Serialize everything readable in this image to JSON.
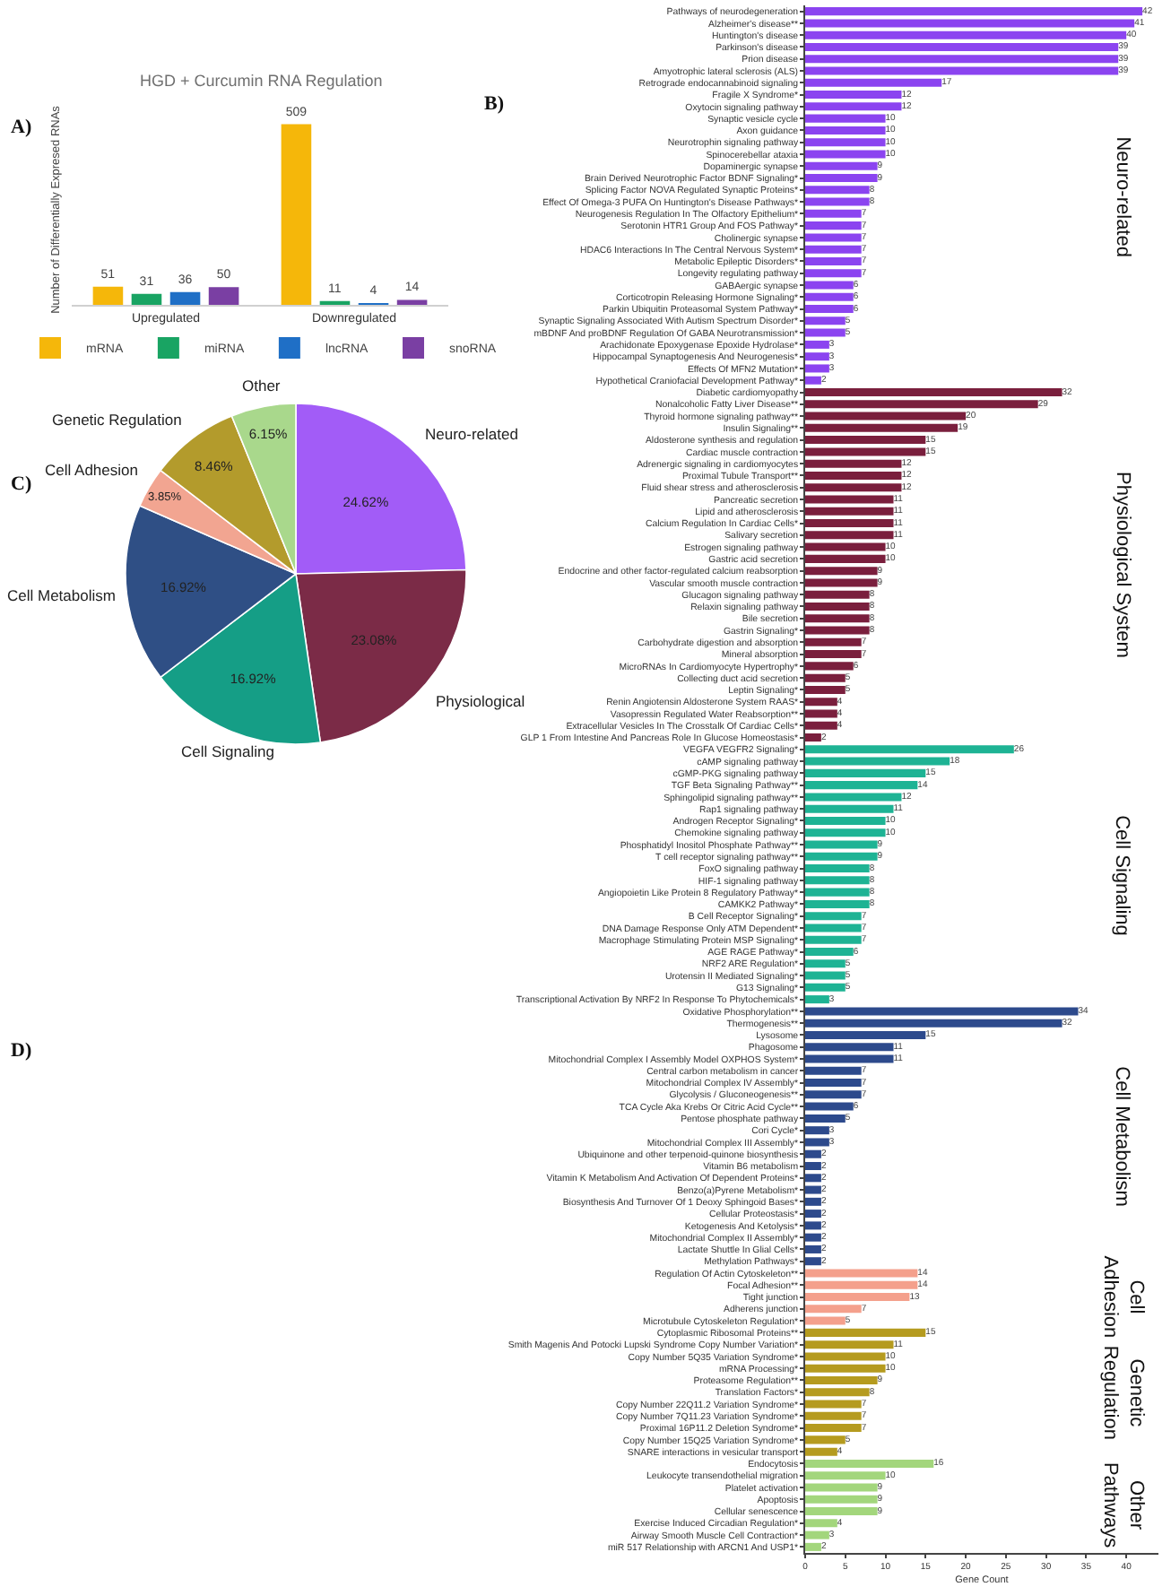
{
  "chart_data": [
    {
      "type": "bar",
      "title": "HGD + Curcumin RNA Regulation",
      "ylabel": "Number of Differentially Expresed RNAs",
      "annotations": [
        "A)"
      ],
      "categories": [
        "Upregulated",
        "Downregulated"
      ],
      "series": [
        {
          "name": "mRNA",
          "color": "#f5b70a",
          "values": [
            51,
            509
          ]
        },
        {
          "name": "miRNA",
          "color": "#19a463",
          "values": [
            31,
            11
          ]
        },
        {
          "name": "lncRNA",
          "color": "#1f6fc6",
          "values": [
            36,
            4
          ]
        },
        {
          "name": "snoRNA",
          "color": "#7a3fa3",
          "values": [
            50,
            14
          ]
        }
      ],
      "data_labels": true,
      "legend": "bottom",
      "tick_labels": "x"
    },
    {
      "type": "bar",
      "orientation": "horizontal",
      "xlabel": "Gene Count",
      "annotations": [
        "B)",
        "Neuro-related",
        "Physiological System",
        "Cell Signaling",
        "Cell Metabolism",
        "Cell\nAdhesion",
        "Genetic\nRegulation",
        "Other\nPathways"
      ],
      "categories": [
        "Pathways of neurodegeneration",
        "Alzheimer's disease**",
        "Huntington's disease",
        "Parkinson's disease",
        "Prion disease",
        "Amyotrophic lateral sclerosis (ALS)",
        "Retrograde endocannabinoid signaling",
        "Fragile X Syndrome*",
        "Oxytocin signaling pathway",
        "Synaptic vesicle cycle",
        "Axon guidance",
        "Neurotrophin signaling pathway",
        "Spinocerebellar ataxia",
        "Dopaminergic synapse",
        "Brain Derived Neurotrophic Factor BDNF Signaling*",
        "Splicing Factor NOVA Regulated Synaptic Proteins*",
        "Effect Of Omega-3 PUFA On Huntington's Disease Pathways*",
        "Neurogenesis Regulation In The Olfactory Epithelium*",
        "Serotonin HTR1 Group And FOS Pathway*",
        "Cholinergic synapse",
        "HDAC6 Interactions In The Central Nervous System*",
        "Metabolic Epileptic Disorders*",
        "Longevity regulating pathway",
        "GABAergic synapse",
        "Corticotropin Releasing Hormone Signaling*",
        "Parkin Ubiquitin Proteasomal System Pathway*",
        "Synaptic Signaling Associated With Autism Spectrum Disorder*",
        "mBDNF And proBDNF Regulation Of GABA Neurotransmission*",
        "Arachidonate Epoxygenase Epoxide Hydrolase*",
        "Hippocampal Synaptogenesis And Neurogenesis*",
        "Effects Of MFN2 Mutation*",
        "Hypothetical Craniofacial Development Pathway*",
        "Diabetic cardiomyopathy",
        "Nonalcoholic Fatty Liver Disease**",
        "Thyroid hormone signaling pathway**",
        "Insulin Signaling**",
        "Aldosterone synthesis and regulation",
        "Cardiac muscle contraction",
        "Adrenergic signaling in cardiomyocytes",
        "Proximal Tubule Transport**",
        "Fluid shear stress and atherosclerosis",
        "Pancreatic secretion",
        "Lipid and atherosclerosis",
        "Calcium Regulation In Cardiac Cells*",
        "Salivary secretion",
        "Estrogen signaling pathway",
        "Gastric acid secretion",
        "Endocrine and other factor-regulated calcium reabsorption",
        "Vascular smooth muscle contraction",
        "Glucagon signaling pathway",
        "Relaxin signaling pathway",
        "Bile secretion",
        "Gastrin Signaling*",
        "Carbohydrate digestion and absorption",
        "Mineral absorption",
        "MicroRNAs In Cardiomyocyte Hypertrophy*",
        "Collecting duct acid secretion",
        "Leptin Signaling*",
        "Renin Angiotensin Aldosterone System RAAS*",
        "Vasopressin Regulated Water Reabsorption**",
        "Extracellular Vesicles In The Crosstalk Of Cardiac Cells*",
        "GLP 1 From Intestine And Pancreas Role In Glucose Homeostasis*",
        "VEGFA VEGFR2 Signaling*",
        "cAMP signaling pathway",
        "cGMP-PKG signaling pathway",
        "TGF Beta Signaling Pathway**",
        "Sphingolipid signaling pathway**",
        "Rap1 signaling pathway",
        "Androgen Receptor Signaling*",
        "Chemokine signaling pathway",
        "Phosphatidyl Inositol Phosphate Pathway**",
        "T cell receptor signaling pathway**",
        "FoxO signaling pathway",
        "HIF-1 signaling pathway",
        "Angiopoietin Like Protein 8 Regulatory Pathway*",
        "CAMKK2 Pathway*",
        "B Cell Receptor Signaling*",
        "DNA Damage Response Only ATM Dependent*",
        "Macrophage Stimulating Protein MSP Signaling*",
        "AGE RAGE Pathway*",
        "NRF2 ARE Regulation*",
        "Urotensin II Mediated Signaling*",
        "G13 Signaling*",
        "Transcriptional Activation By NRF2 In Response To Phytochemicals*",
        "Oxidative Phosphorylation**",
        "Thermogenesis**",
        "Lysosome",
        "Phagosome",
        "Mitochondrial Complex I Assembly Model OXPHOS System*",
        "Central carbon metabolism in cancer",
        "Mitochondrial Complex IV Assembly*",
        "Glycolysis / Gluconeogenesis**",
        "TCA Cycle Aka Krebs Or Citric Acid Cycle**",
        "Pentose phosphate pathway",
        "Cori Cycle*",
        "Mitochondrial Complex III Assembly*",
        "Ubiquinone and other terpenoid-quinone biosynthesis",
        "Vitamin B6 metabolism",
        "Vitamin K Metabolism And Activation Of Dependent Proteins*",
        "Benzo(a)Pyrene Metabolism*",
        "Biosynthesis And Turnover Of 1 Deoxy Sphingoid Bases*",
        "Cellular Proteostasis*",
        "Ketogenesis And Ketolysis*",
        "Mitochondrial Complex II Assembly*",
        "Lactate Shuttle In Glial Cells*",
        "Methylation Pathways*",
        "Regulation Of Actin Cytoskeleton**",
        "Focal Adhesion**",
        "Tight junction",
        "Adherens junction",
        "Microtubule Cytoskeleton Regulation*",
        "Cytoplasmic Ribosomal Proteins**",
        "Smith Magenis And Potocki Lupski Syndrome Copy Number Variation*",
        "Copy Number 5Q35 Variation Syndrome*",
        "mRNA Processing*",
        "Proteasome Regulation**",
        "Translation Factors*",
        "Copy Number 22Q11.2 Variation Syndrome*",
        "Copy Number 7Q11.23 Variation Syndrome*",
        "Proximal 16P11.2 Deletion Syndrome*",
        "Copy Number 15Q25 Variation Syndrome*",
        "SNARE interactions in vesicular transport",
        "Endocytosis",
        "Leukocyte transendothelial migration",
        "Platelet activation",
        "Apoptosis",
        "Cellular senescence",
        "Exercise Induced Circadian Regulation*",
        "Airway Smooth Muscle Cell Contraction*",
        "miR 517 Relationship with ARCN1 And USP1*"
      ],
      "values": [
        42,
        41,
        40,
        39,
        39,
        39,
        17,
        12,
        12,
        10,
        10,
        10,
        10,
        9,
        9,
        8,
        8,
        7,
        7,
        7,
        7,
        7,
        7,
        6,
        6,
        6,
        5,
        5,
        3,
        3,
        3,
        2,
        32,
        29,
        20,
        19,
        15,
        15,
        12,
        12,
        12,
        11,
        11,
        11,
        11,
        10,
        10,
        9,
        9,
        8,
        8,
        8,
        8,
        7,
        7,
        6,
        5,
        5,
        4,
        4,
        4,
        2,
        26,
        18,
        15,
        14,
        12,
        11,
        10,
        10,
        9,
        9,
        8,
        8,
        8,
        8,
        7,
        7,
        7,
        6,
        5,
        5,
        5,
        3,
        34,
        32,
        15,
        11,
        11,
        7,
        7,
        7,
        6,
        5,
        3,
        3,
        2,
        2,
        2,
        2,
        2,
        2,
        2,
        2,
        2,
        2,
        14,
        14,
        13,
        7,
        5,
        15,
        11,
        10,
        10,
        9,
        8,
        7,
        7,
        7,
        5,
        4,
        16,
        10,
        9,
        9,
        9,
        4,
        3,
        2
      ],
      "colors": [
        "#8b44f0",
        "#8b44f0",
        "#8b44f0",
        "#8b44f0",
        "#8b44f0",
        "#8b44f0",
        "#8b44f0",
        "#8b44f0",
        "#8b44f0",
        "#8b44f0",
        "#8b44f0",
        "#8b44f0",
        "#8b44f0",
        "#8b44f0",
        "#8b44f0",
        "#8b44f0",
        "#8b44f0",
        "#8b44f0",
        "#8b44f0",
        "#8b44f0",
        "#8b44f0",
        "#8b44f0",
        "#8b44f0",
        "#8b44f0",
        "#8b44f0",
        "#8b44f0",
        "#8b44f0",
        "#8b44f0",
        "#8b44f0",
        "#8b44f0",
        "#8b44f0",
        "#8b44f0",
        "#7a1f3d",
        "#7a1f3d",
        "#7a1f3d",
        "#7a1f3d",
        "#7a1f3d",
        "#7a1f3d",
        "#7a1f3d",
        "#7a1f3d",
        "#7a1f3d",
        "#7a1f3d",
        "#7a1f3d",
        "#7a1f3d",
        "#7a1f3d",
        "#7a1f3d",
        "#7a1f3d",
        "#7a1f3d",
        "#7a1f3d",
        "#7a1f3d",
        "#7a1f3d",
        "#7a1f3d",
        "#7a1f3d",
        "#7a1f3d",
        "#7a1f3d",
        "#7a1f3d",
        "#7a1f3d",
        "#7a1f3d",
        "#7a1f3d",
        "#7a1f3d",
        "#7a1f3d",
        "#7a1f3d",
        "#1eb394",
        "#1eb394",
        "#1eb394",
        "#1eb394",
        "#1eb394",
        "#1eb394",
        "#1eb394",
        "#1eb394",
        "#1eb394",
        "#1eb394",
        "#1eb394",
        "#1eb394",
        "#1eb394",
        "#1eb394",
        "#1eb394",
        "#1eb394",
        "#1eb394",
        "#1eb394",
        "#1eb394",
        "#1eb394",
        "#1eb394",
        "#1eb394",
        "#2d4a8c",
        "#2d4a8c",
        "#2d4a8c",
        "#2d4a8c",
        "#2d4a8c",
        "#2d4a8c",
        "#2d4a8c",
        "#2d4a8c",
        "#2d4a8c",
        "#2d4a8c",
        "#2d4a8c",
        "#2d4a8c",
        "#2d4a8c",
        "#2d4a8c",
        "#2d4a8c",
        "#2d4a8c",
        "#2d4a8c",
        "#2d4a8c",
        "#2d4a8c",
        "#2d4a8c",
        "#2d4a8c",
        "#2d4a8c",
        "#f4a08c",
        "#f4a08c",
        "#f4a08c",
        "#f4a08c",
        "#f4a08c",
        "#b59b1f",
        "#b59b1f",
        "#b59b1f",
        "#b59b1f",
        "#b59b1f",
        "#b59b1f",
        "#b59b1f",
        "#b59b1f",
        "#b59b1f",
        "#b59b1f",
        "#b59b1f",
        "#a3d67c",
        "#a3d67c",
        "#a3d67c",
        "#a3d67c",
        "#a3d67c",
        "#a3d67c",
        "#a3d67c",
        "#a3d67c"
      ],
      "xlim": [
        0,
        44
      ],
      "xticks": [
        0,
        5,
        10,
        15,
        20,
        25,
        30,
        35,
        40
      ],
      "data_labels": true
    },
    {
      "type": "pie",
      "annotations": [
        "C)"
      ],
      "categories": [
        "Neuro-related",
        "Physiological",
        "Cell Signaling",
        "Cell Metabolism",
        "Cell Adhesion",
        "Genetic Regulation",
        "Other"
      ],
      "values": [
        24.62,
        23.08,
        16.92,
        16.92,
        3.85,
        8.46,
        6.15
      ],
      "value_labels": [
        "24.62%",
        "23.08%",
        "16.92%",
        "16.92%",
        "3.85%",
        "8.46%",
        "6.15%"
      ],
      "colors": [
        "#a25cf7",
        "#7b2b47",
        "#159e86",
        "#2f4f85",
        "#f2a591",
        "#b39b2c",
        "#a9d88c"
      ]
    },
    {
      "type": "other",
      "title": "D)"
    }
  ]
}
